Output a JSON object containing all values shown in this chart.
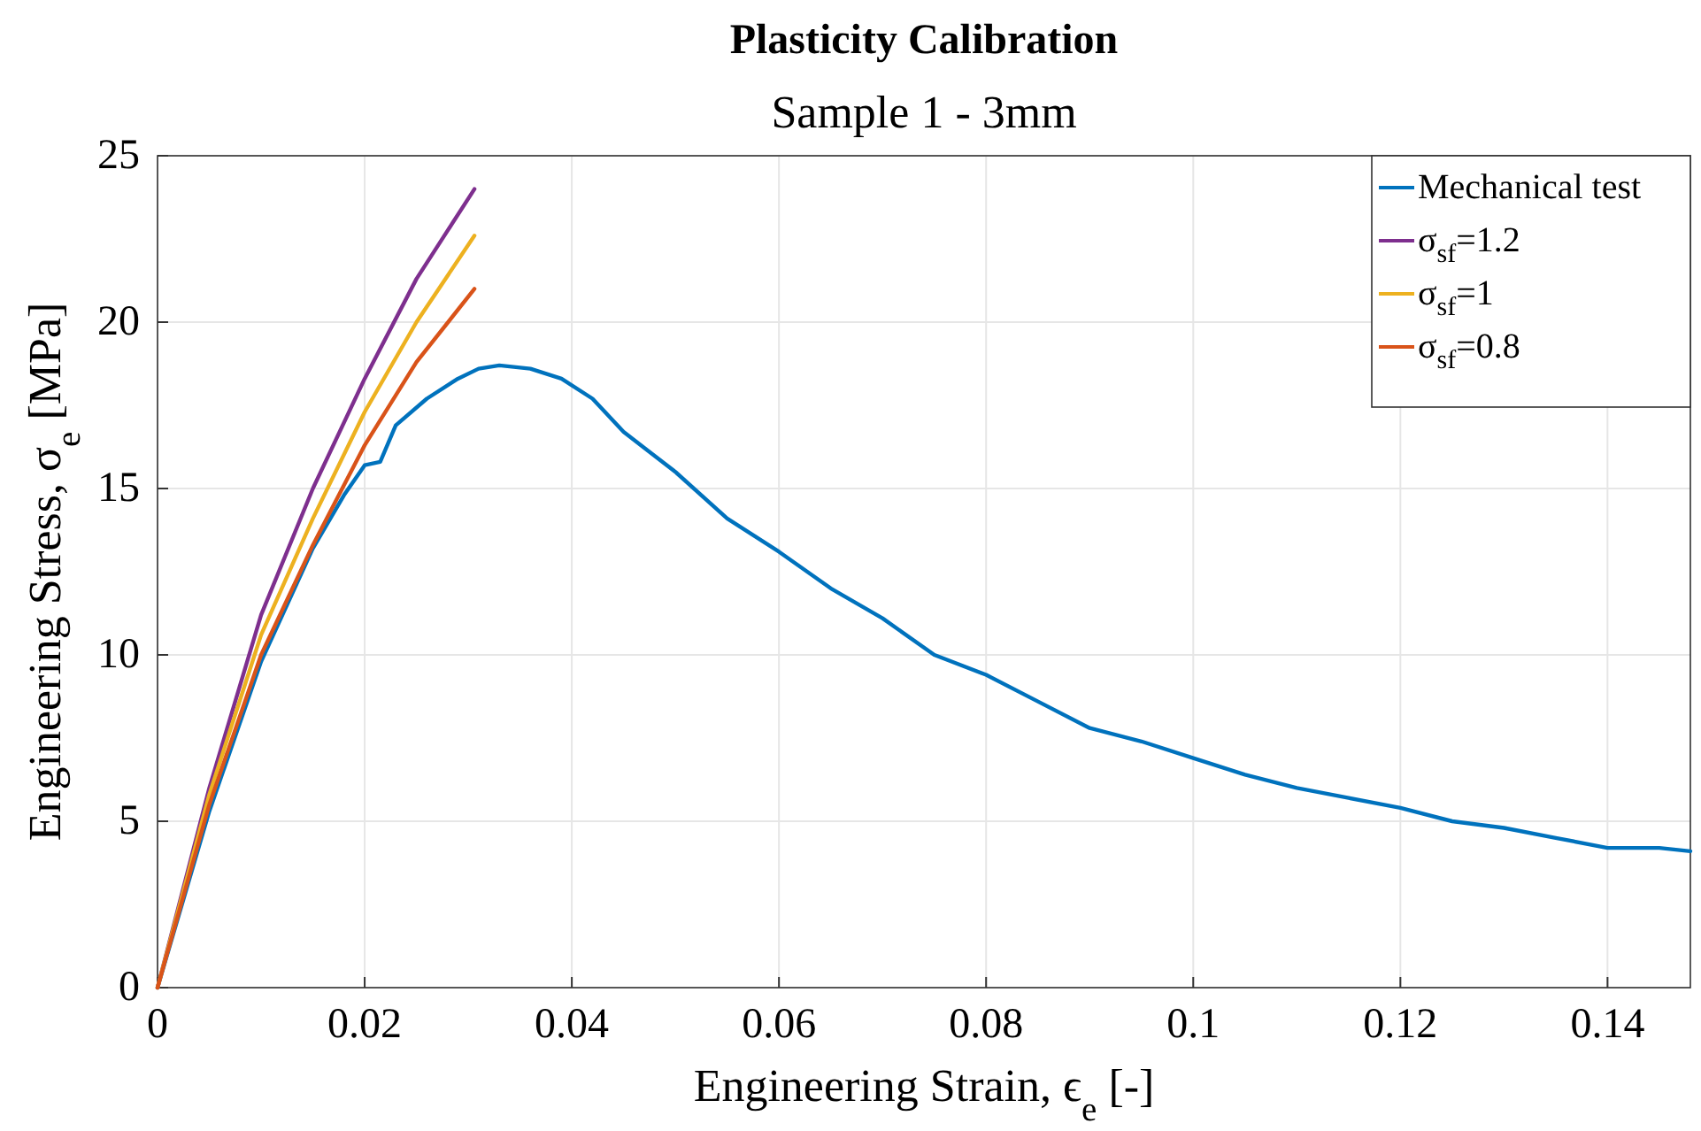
{
  "chart_data": {
    "type": "line",
    "title": "Plasticity Calibration",
    "subtitle": "Sample 1 - 3mm",
    "xlabel": "Engineering Strain, ϵ$_{e}$ [-]",
    "ylabel": "Engineering Stress, σ$_{e}$ [MPa]",
    "xlim": [
      0,
      0.148
    ],
    "ylim": [
      0,
      25
    ],
    "xticks": [
      0,
      0.02,
      0.04,
      0.06,
      0.08,
      0.1,
      0.12,
      0.14
    ],
    "yticks": [
      0,
      5,
      10,
      15,
      20,
      25
    ],
    "grid": true,
    "legend": "top right",
    "marker": "none",
    "line_style": "solid",
    "series": [
      {
        "name": "Mechanical test",
        "color": "#0072bd",
        "x": [
          0,
          0.005,
          0.01,
          0.015,
          0.018,
          0.02,
          0.0215,
          0.023,
          0.026,
          0.029,
          0.031,
          0.033,
          0.036,
          0.039,
          0.042,
          0.045,
          0.05,
          0.055,
          0.06,
          0.065,
          0.07,
          0.075,
          0.08,
          0.085,
          0.09,
          0.095,
          0.1,
          0.105,
          0.11,
          0.115,
          0.12,
          0.125,
          0.13,
          0.135,
          0.14,
          0.145,
          0.148
        ],
        "values": [
          0,
          5.3,
          9.8,
          13.2,
          14.8,
          15.7,
          15.8,
          16.9,
          17.7,
          18.3,
          18.6,
          18.7,
          18.6,
          18.3,
          17.7,
          16.7,
          15.5,
          14.1,
          13.1,
          12.0,
          11.1,
          10.0,
          9.4,
          8.6,
          7.8,
          7.4,
          6.9,
          6.4,
          6.0,
          5.7,
          5.4,
          5.0,
          4.8,
          4.5,
          4.2,
          4.2,
          4.1
        ]
      },
      {
        "name": "σ$_{sf}$=1.2",
        "color": "#7e2f8e",
        "x": [
          0,
          0.005,
          0.01,
          0.015,
          0.02,
          0.025,
          0.0306
        ],
        "values": [
          0,
          6.0,
          11.2,
          15.0,
          18.3,
          21.3,
          24.0
        ]
      },
      {
        "name": "σ$_{sf}$=1",
        "color": "#edb120",
        "x": [
          0,
          0.005,
          0.01,
          0.015,
          0.02,
          0.025,
          0.0306
        ],
        "values": [
          0,
          5.8,
          10.6,
          14.1,
          17.3,
          20.0,
          22.6
        ]
      },
      {
        "name": "σ$_{sf}$=0.8",
        "color": "#d95319",
        "x": [
          0,
          0.005,
          0.01,
          0.015,
          0.02,
          0.025,
          0.0306
        ],
        "values": [
          0,
          5.5,
          10.0,
          13.3,
          16.3,
          18.8,
          21.0
        ]
      }
    ]
  }
}
